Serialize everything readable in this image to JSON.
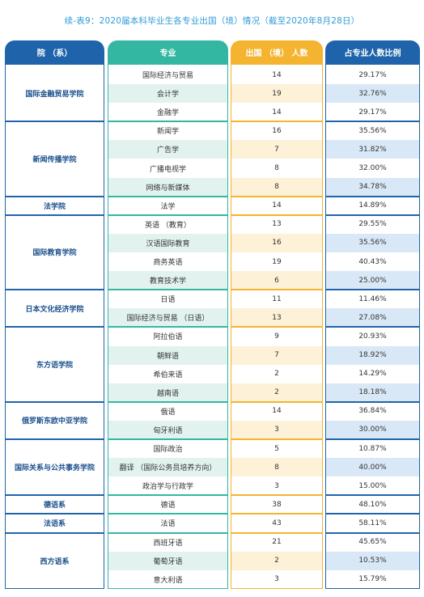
{
  "title": "续-表9：2020届本科毕业生各专业出国（境）情况（截至2020年8月28日）",
  "headers": [
    "院 （系）",
    "专业",
    "出国 （境） 人数",
    "占专业人数比例"
  ],
  "departments": [
    {
      "name": "国际金融贸易学院",
      "majors": [
        {
          "major": "国际经济与贸易",
          "count": "14",
          "ratio": "29.17%"
        },
        {
          "major": "会计学",
          "count": "19",
          "ratio": "32.76%"
        },
        {
          "major": "金融学",
          "count": "14",
          "ratio": "29.17%"
        }
      ]
    },
    {
      "name": "新闻传播学院",
      "majors": [
        {
          "major": "新闻学",
          "count": "16",
          "ratio": "35.56%"
        },
        {
          "major": "广告学",
          "count": "7",
          "ratio": "31.82%"
        },
        {
          "major": "广播电视学",
          "count": "8",
          "ratio": "32.00%"
        },
        {
          "major": "网络与新媒体",
          "count": "8",
          "ratio": "34.78%"
        }
      ]
    },
    {
      "name": "法学院",
      "majors": [
        {
          "major": "法学",
          "count": "14",
          "ratio": "14.89%"
        }
      ]
    },
    {
      "name": "国际教育学院",
      "majors": [
        {
          "major": "英语 （教育）",
          "count": "13",
          "ratio": "29.55%"
        },
        {
          "major": "汉语国际教育",
          "count": "16",
          "ratio": "35.56%"
        },
        {
          "major": "商务英语",
          "count": "19",
          "ratio": "40.43%"
        },
        {
          "major": "教育技术学",
          "count": "6",
          "ratio": "25.00%"
        }
      ]
    },
    {
      "name": "日本文化经济学院",
      "majors": [
        {
          "major": "日语",
          "count": "11",
          "ratio": "11.46%"
        },
        {
          "major": "国际经济与贸易 （日语）",
          "count": "13",
          "ratio": "27.08%"
        }
      ]
    },
    {
      "name": "东方语学院",
      "majors": [
        {
          "major": "阿拉伯语",
          "count": "9",
          "ratio": "20.93%"
        },
        {
          "major": "朝鲜语",
          "count": "7",
          "ratio": "18.92%"
        },
        {
          "major": "希伯来语",
          "count": "2",
          "ratio": "14.29%"
        },
        {
          "major": "越南语",
          "count": "2",
          "ratio": "18.18%"
        }
      ]
    },
    {
      "name": "俄罗斯东欧中亚学院",
      "majors": [
        {
          "major": "俄语",
          "count": "14",
          "ratio": "36.84%"
        },
        {
          "major": "匈牙利语",
          "count": "3",
          "ratio": "30.00%"
        }
      ]
    },
    {
      "name": "国际关系与公共事务学院",
      "majors": [
        {
          "major": "国际政治",
          "count": "5",
          "ratio": "10.87%"
        },
        {
          "major": "翻译 （国际公务员培养方向）",
          "count": "8",
          "ratio": "40.00%"
        },
        {
          "major": "政治学与行政学",
          "count": "3",
          "ratio": "15.00%"
        }
      ]
    },
    {
      "name": "德语系",
      "majors": [
        {
          "major": "德语",
          "count": "38",
          "ratio": "48.10%"
        }
      ]
    },
    {
      "name": "法语系",
      "majors": [
        {
          "major": "法语",
          "count": "43",
          "ratio": "58.11%"
        }
      ]
    },
    {
      "name": "西方语系",
      "majors": [
        {
          "major": "西班牙语",
          "count": "21",
          "ratio": "45.65%"
        },
        {
          "major": "葡萄牙语",
          "count": "2",
          "ratio": "10.53%"
        },
        {
          "major": "意大利语",
          "count": "3",
          "ratio": "15.79%"
        }
      ]
    }
  ],
  "colors": {
    "dept_blue": "#1f64ab",
    "teal": "#34b7a2",
    "orange": "#f4b42f",
    "major_fill": "#e2f3ef",
    "count_fill": "#fdf1d8",
    "ratio_fill": "#d9e8f6"
  }
}
